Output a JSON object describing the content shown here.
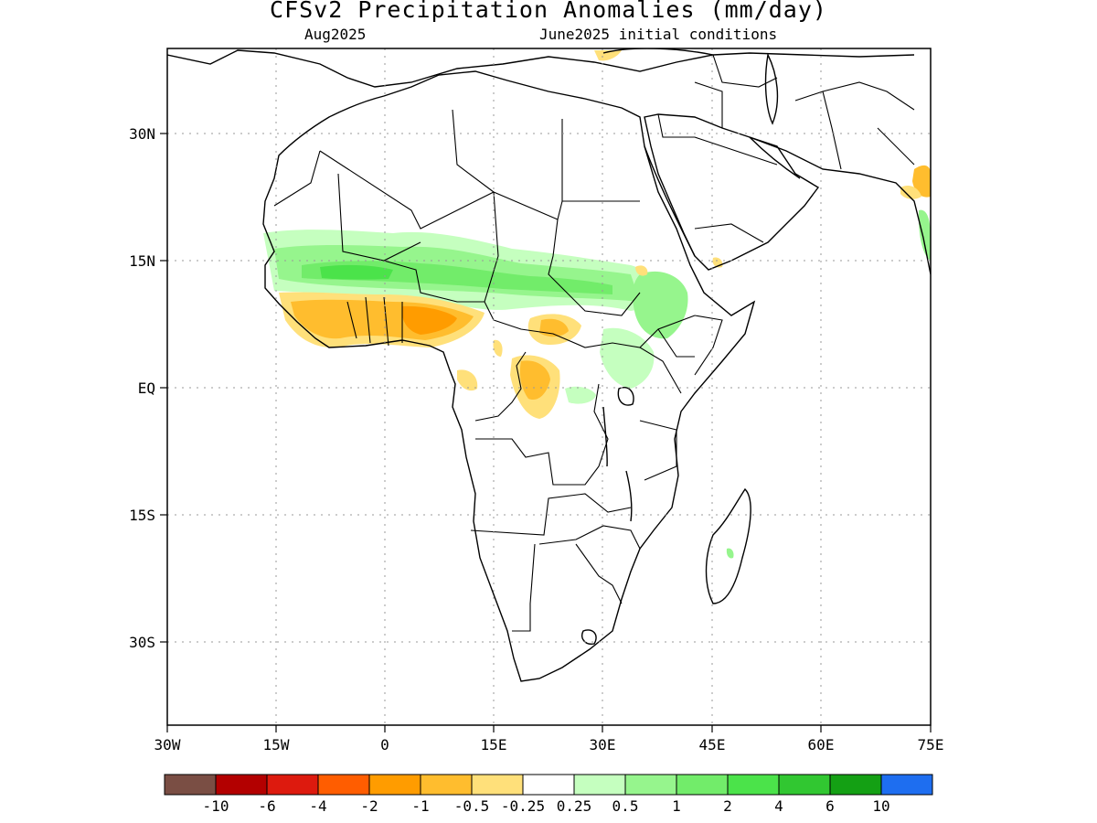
{
  "title": "CFSv2 Precipitation Anomalies (mm/day)",
  "subtitle_left": "Aug2025",
  "subtitle_right": "June2025 initial conditions",
  "map": {
    "lon_range": [
      -30,
      75
    ],
    "lat_range": [
      -40,
      39
    ],
    "x_ticks": [
      "30W",
      "15W",
      "0",
      "15E",
      "30E",
      "45E",
      "60E",
      "75E"
    ],
    "y_ticks": [
      "30N",
      "15N",
      "EQ",
      "15S",
      "30S"
    ],
    "grid": "dotted"
  },
  "colorbar": {
    "colors": [
      "#7a4e44",
      "#b30000",
      "#dd1a0e",
      "#ff5d00",
      "#ff9c00",
      "#ffbd2e",
      "#ffe07a",
      "#ffffff",
      "#c5ffbf",
      "#96f58d",
      "#72ec6a",
      "#4be34a",
      "#31c731",
      "#14a014",
      "#1e6ef0"
    ],
    "labels": [
      "-10",
      "-6",
      "-4",
      "-2",
      "-1",
      "-0.5",
      "-0.25",
      "0.25",
      "0.5",
      "1",
      "2",
      "4",
      "6",
      "10"
    ]
  }
}
